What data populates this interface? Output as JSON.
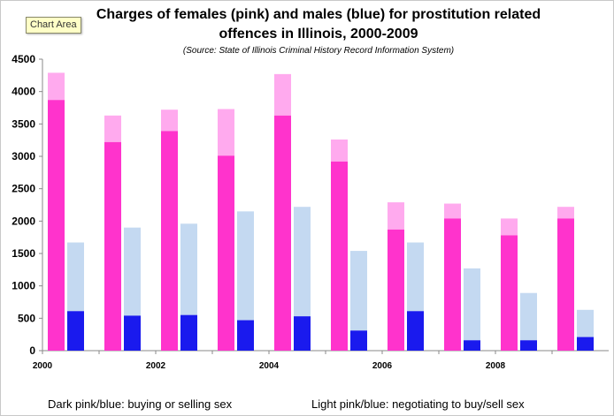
{
  "tooltip": "Chart Area",
  "chart_data": {
    "type": "bar",
    "title_line1": "Charges of females (pink) and males (blue) for prostitution related",
    "title_line2": "offences in Illinois, 2000-2009",
    "subtitle": "(Source: State of Illinois Criminal History Record Information System)",
    "ylim": [
      0,
      4500
    ],
    "yticks": [
      "0",
      "500",
      "1000",
      "1500",
      "2000",
      "2500",
      "3000",
      "3500",
      "4000",
      "4500"
    ],
    "categories": [
      "2000",
      "2001",
      "2002",
      "2003",
      "2004",
      "2005",
      "2006",
      "2007",
      "2008",
      "2009"
    ],
    "xtick_labels": [
      "2000",
      "",
      "2002",
      "",
      "2004",
      "",
      "2006",
      "",
      "2008",
      ""
    ],
    "series": [
      {
        "name": "Dark pink/blue: buying or selling sex",
        "group": "female",
        "values": [
          3870,
          3220,
          3390,
          3010,
          3630,
          2920,
          1870,
          2040,
          1780,
          2040
        ]
      },
      {
        "name": "Light pink/blue: negotiating to buy/sell sex",
        "group": "female",
        "values": [
          420,
          410,
          330,
          720,
          640,
          340,
          420,
          230,
          260,
          180
        ]
      },
      {
        "name": "Dark pink/blue: buying or selling sex",
        "group": "male",
        "values": [
          610,
          540,
          550,
          470,
          530,
          310,
          610,
          160,
          160,
          210
        ]
      },
      {
        "name": "Light pink/blue: negotiating to buy/sell sex",
        "group": "male",
        "values": [
          1060,
          1360,
          1410,
          1680,
          1690,
          1230,
          1060,
          1110,
          730,
          420
        ]
      }
    ],
    "colors": {
      "female_dark": "#ff33cc",
      "female_light": "#ffaaee",
      "male_dark": "#1a1aee",
      "male_light": "#c4d9f1"
    },
    "legend_notes": [
      "Dark pink/blue: buying or selling sex",
      "Light pink/blue: negotiating to buy/sell sex"
    ]
  }
}
